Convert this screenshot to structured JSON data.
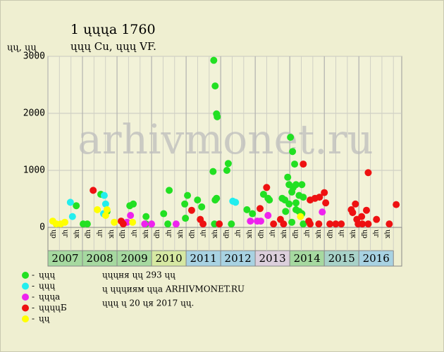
{
  "chart_data": {
    "type": "scatter",
    "title": "1 ųųųа 1760",
    "subtitle": "ųųų Cu, ųųų VF.",
    "y_label": "ųų, ųų",
    "watermark": "arhivmonet.ru",
    "xlim": [
      2007,
      2017.24
    ],
    "xticks": [
      2007,
      2008,
      2009,
      2010,
      2011,
      2012,
      2013,
      2014,
      2015,
      2016
    ],
    "year_colors": [
      "#a6d9a0",
      "#a6d9a0",
      "#a6d9a0",
      "#d6e8a2",
      "#a8d2e2",
      "#a8d2e2",
      "#dccfdc",
      "#a6d9a0",
      "#a8d2c8",
      "#a8d2e2"
    ],
    "sublabels": [
      "ųр",
      "ųг",
      "ųк"
    ],
    "ylim": [
      0,
      3000
    ],
    "yticks": [
      0,
      1000,
      2000,
      3000
    ],
    "grid": true,
    "series": [
      {
        "name": "ųųų",
        "color": "#22e022",
        "x": [
          2007.82,
          2008.02,
          2008.14,
          2008.53,
          2008.71,
          2009.37,
          2009.47,
          2009.84,
          2009.84,
          2010.35,
          2010.51,
          2010.47,
          2010.96,
          2011.04,
          2010.98,
          2011.33,
          2011.45,
          2011.8,
          2011.84,
          2011.88,
          2011.9,
          2011.78,
          2011.84,
          2011.88,
          2011.82,
          2012.18,
          2012.22,
          2012.31,
          2012.76,
          2012.92,
          2013.24,
          2013.37,
          2013.41,
          2013.78,
          2013.86,
          2013.94,
          2013.98,
          2014.02,
          2014.08,
          2014.14,
          2014.06,
          2014.1,
          2014.18,
          2014.18,
          2014.27,
          2014.35,
          2014.39,
          2014.18,
          2014.27,
          2014.35,
          2014.06,
          2013.98,
          2013.88,
          2014.39
        ],
        "values": [
          380,
          60,
          60,
          580,
          280,
          380,
          410,
          190,
          60,
          240,
          650,
          60,
          410,
          560,
          160,
          480,
          360,
          2930,
          2480,
          1990,
          1940,
          980,
          480,
          510,
          60,
          1000,
          1120,
          60,
          310,
          240,
          580,
          510,
          480,
          510,
          480,
          880,
          750,
          1580,
          1330,
          1110,
          620,
          700,
          750,
          430,
          560,
          750,
          530,
          310,
          280,
          240,
          90,
          410,
          280,
          60
        ]
      },
      {
        "name": "ųųų",
        "color": "#22eeee",
        "x": [
          2007.65,
          2007.71,
          2008.63,
          2008.67,
          2008.61,
          2012.35,
          2012.43
        ],
        "values": [
          440,
          190,
          560,
          410,
          240,
          460,
          440
        ]
      },
      {
        "name": "ųųųа",
        "color": "#ee22ee",
        "x": [
          2009.39,
          2009.29,
          2010.71,
          2009.8,
          2010.0,
          2012.86,
          2013.06,
          2013.16,
          2013.37,
          2014.94
        ],
        "values": [
          210,
          90,
          60,
          60,
          60,
          110,
          110,
          110,
          210,
          270
        ]
      },
      {
        "name": "ųųųųБ",
        "color": "#ee1111",
        "x": [
          2008.31,
          2009.12,
          2009.18,
          2011.16,
          2011.41,
          2011.49,
          2011.96,
          2013.14,
          2013.33,
          2013.53,
          2013.73,
          2013.82,
          2014.39,
          2014.55,
          2014.59,
          2014.59,
          2014.73,
          2014.86,
          2015.0,
          2015.04,
          2014.84,
          2015.16,
          2015.33,
          2015.49,
          2015.78,
          2015.82,
          2015.9,
          2015.94,
          2015.98,
          2016.08,
          2016.1,
          2016.22,
          2016.27,
          2016.27,
          2016.51,
          2016.88,
          2017.08
        ],
        "values": [
          650,
          110,
          60,
          300,
          140,
          60,
          60,
          330,
          700,
          60,
          140,
          60,
          1110,
          110,
          60,
          480,
          510,
          530,
          610,
          430,
          60,
          60,
          60,
          60,
          310,
          260,
          410,
          140,
          60,
          190,
          60,
          300,
          960,
          60,
          140,
          60,
          400
        ]
      },
      {
        "name": "ųų",
        "color": "#ffff00",
        "x": [
          2007.14,
          2007.24,
          2007.37,
          2007.49,
          2008.43,
          2008.67,
          2008.71,
          2008.92,
          2009.45,
          2014.31
        ],
        "values": [
          110,
          60,
          60,
          90,
          310,
          210,
          310,
          90,
          90,
          190
        ]
      }
    ],
    "footer": [
      "ųųųня ųų 293 ųų",
      "ų ųųųиям ųųа ARHIVMONET.RU",
      "ųųų ų 20 ųя 2017 ųų."
    ]
  }
}
